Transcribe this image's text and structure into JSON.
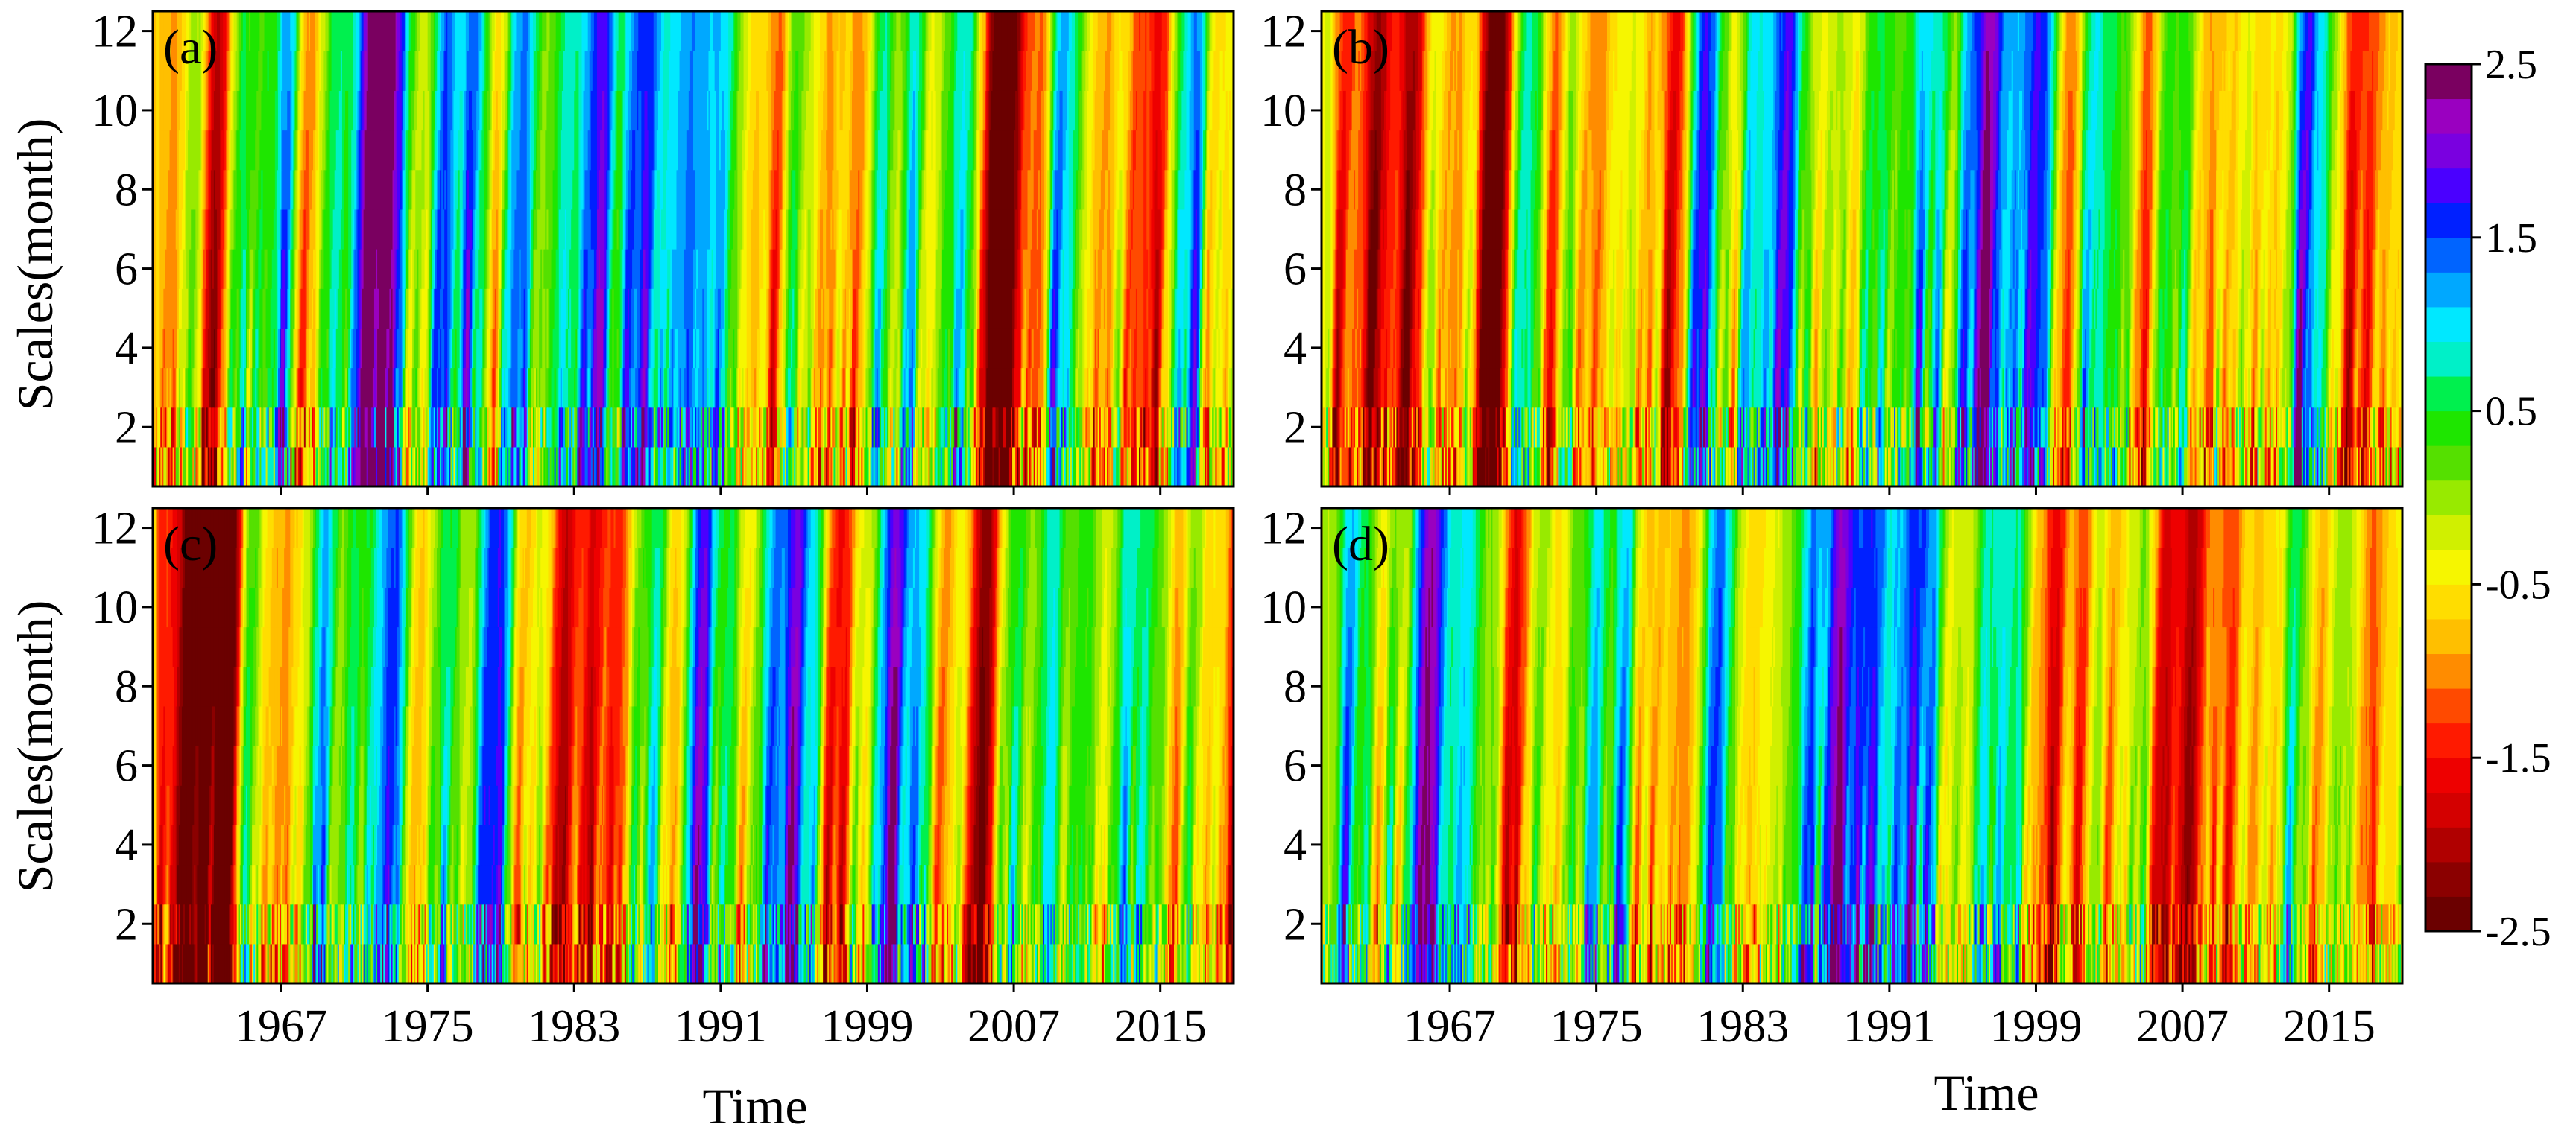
{
  "chart_data": {
    "type": "heatmap",
    "panels": [
      {
        "label": "(a)",
        "seed": 11,
        "position": "top-left"
      },
      {
        "label": "(b)",
        "seed": 23,
        "position": "top-right"
      },
      {
        "label": "(c)",
        "seed": 37,
        "position": "bottom-left"
      },
      {
        "label": "(d)",
        "seed": 51,
        "position": "bottom-right"
      }
    ],
    "ylabel": "Scales(month)",
    "xlabel": "Time",
    "x_range": [
      1960,
      2019
    ],
    "x_ticks": [
      1967,
      1975,
      1983,
      1991,
      1999,
      2007,
      2015
    ],
    "y_range": [
      0.5,
      12.5
    ],
    "y_ticks": [
      2,
      4,
      6,
      8,
      10,
      12
    ],
    "scales": [
      1,
      2,
      3,
      4,
      5,
      6,
      7,
      8,
      9,
      10,
      11,
      12
    ],
    "colorbar": {
      "range": [
        -2.5,
        2.5
      ],
      "tick_labels": [
        "2.5",
        "1.5",
        "0.5",
        "-0.5",
        "-1.5",
        "-2.5"
      ],
      "tick_values": [
        2.5,
        1.5,
        0.5,
        -0.5,
        -1.5,
        -2.5
      ],
      "colors": [
        "#6b0000",
        "#8b0000",
        "#b00000",
        "#d40000",
        "#ee0000",
        "#ff1a00",
        "#ff4a00",
        "#ff8c00",
        "#ffbf00",
        "#ffdd00",
        "#f6f600",
        "#d0f000",
        "#98ea00",
        "#55e000",
        "#1ee600",
        "#00f04e",
        "#00f0c8",
        "#00e8ff",
        "#00a8ff",
        "#0064ff",
        "#0020ff",
        "#4a00ff",
        "#7a00e0",
        "#9a00c0",
        "#7a0060"
      ]
    }
  }
}
